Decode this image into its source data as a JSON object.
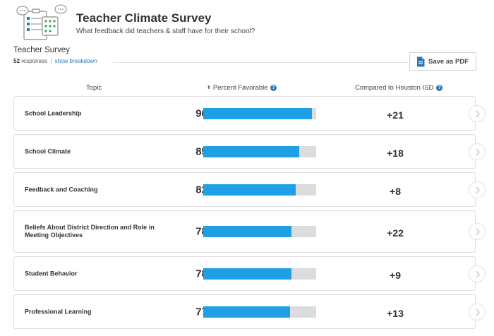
{
  "header": {
    "title": "Teacher Climate Survey",
    "subtitle": "What feedback did teachers & staff have for their school?",
    "icon": "survey-clipboard-icon"
  },
  "survey": {
    "title": "Teacher Survey",
    "response_count": "52",
    "responses_label": "responses",
    "separator": "|",
    "breakdown_link": "show breakdown"
  },
  "pdf_button": {
    "label": "Save as PDF",
    "icon": "pdf-file-icon"
  },
  "columns": {
    "topic": "Topic",
    "percent_favorable": "Percent Favorable",
    "compared": "Compared to Houston ISD",
    "help_glyph": "?",
    "sort_glyph": "⬍"
  },
  "percent_sign": "%",
  "rows": [
    {
      "topic": "School Leadership",
      "percent": "96",
      "fill": 0.96,
      "delta": "+21"
    },
    {
      "topic": "School Climate",
      "percent": "85",
      "fill": 0.85,
      "delta": "+18"
    },
    {
      "topic": "Feedback and Coaching",
      "percent": "82",
      "fill": 0.82,
      "delta": "+8"
    },
    {
      "topic": "Beliefs About District Direction and Role in Meeting Objectives",
      "percent": "78",
      "fill": 0.78,
      "delta": "+22"
    },
    {
      "topic": "Student Behavior",
      "percent": "78",
      "fill": 0.78,
      "delta": "+9"
    },
    {
      "topic": "Professional Learning",
      "percent": "77",
      "fill": 0.77,
      "delta": "+13"
    }
  ],
  "colors": {
    "bar_fill": "#1e9fe6",
    "bar_track": "#dcdcdc",
    "link": "#2a79b8",
    "border": "#dddddd"
  }
}
